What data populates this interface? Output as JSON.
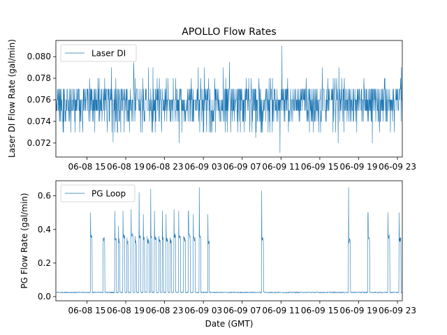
{
  "figure": {
    "title": "APOLLO Flow Rates",
    "xlabel": "Date (GMT)"
  },
  "chart_data": [
    {
      "type": "line",
      "title": "APOLLO Flow Rates",
      "xlabel": "",
      "ylabel": "Laser DI Flow Rate (gal/min)",
      "x_tick_labels": [
        "06-08 15",
        "06-08 19",
        "06-08 23",
        "06-09 03",
        "06-09 07",
        "06-09 11",
        "06-09 15",
        "06-09 19",
        "06-09 23"
      ],
      "x_ticks_hours": [
        15,
        19,
        23,
        27,
        31,
        35,
        39,
        43,
        47
      ],
      "xlim_hours": [
        11.8,
        47.5
      ],
      "y_ticks": [
        0.072,
        0.074,
        0.076,
        0.078,
        0.08
      ],
      "y_tick_labels": [
        "0.072",
        "0.074",
        "0.076",
        "0.078",
        "0.080"
      ],
      "ylim": [
        0.0707,
        0.0815
      ],
      "legend": {
        "position": "upper-left",
        "entries": [
          "Laser DI"
        ]
      },
      "grid": false,
      "color": "#1f77b4",
      "series": [
        {
          "name": "Laser DI",
          "x_hours_start": 11.8,
          "x_hours_end": 47.5,
          "baseline_values": [
            0.075,
            0.076,
            0.077,
            0.074,
            0.076,
            0.075,
            0.077,
            0.076
          ],
          "spikes": [
            {
              "x_hours": 35.1,
              "value": 0.081
            },
            {
              "x_hours": 34.9,
              "value": 0.0711
            },
            {
              "x_hours": 17.7,
              "value": 0.0721
            },
            {
              "x_hours": 24.5,
              "value": 0.072
            },
            {
              "x_hours": 32.4,
              "value": 0.0725
            },
            {
              "x_hours": 40.9,
              "value": 0.072
            },
            {
              "x_hours": 44.4,
              "value": 0.072
            },
            {
              "x_hours": 47.4,
              "value": 0.079
            },
            {
              "x_hours": 19.8,
              "value": 0.0795
            },
            {
              "x_hours": 29.7,
              "value": 0.0795
            }
          ]
        }
      ]
    },
    {
      "type": "line",
      "title": "",
      "xlabel": "Date (GMT)",
      "ylabel": "PG Flow Rate (gal/min)",
      "x_tick_labels": [
        "06-08 15",
        "06-08 19",
        "06-08 23",
        "06-09 03",
        "06-09 07",
        "06-09 11",
        "06-09 15",
        "06-09 19",
        "06-09 23"
      ],
      "x_ticks_hours": [
        15,
        19,
        23,
        27,
        31,
        35,
        39,
        43,
        47
      ],
      "xlim_hours": [
        11.8,
        47.5
      ],
      "y_ticks": [
        0.0,
        0.2,
        0.4,
        0.6
      ],
      "y_tick_labels": [
        "0.0",
        "0.2",
        "0.4",
        "0.6"
      ],
      "ylim": [
        -0.025,
        0.69
      ],
      "legend": {
        "position": "upper-left",
        "entries": [
          "PG Loop"
        ]
      },
      "grid": false,
      "color": "#1f77b4",
      "series": [
        {
          "name": "PG Loop",
          "x_hours_start": 11.8,
          "x_hours_end": 47.5,
          "baseline": 0.025,
          "pulses": [
            [
              15.35,
              15.55,
              0.36,
              0.5
            ],
            [
              16.65,
              16.85,
              0.34,
              0.35
            ],
            [
              17.85,
              18.05,
              0.35,
              0.51
            ],
            [
              18.25,
              18.4,
              0.33,
              0.42
            ],
            [
              18.7,
              18.9,
              0.36,
              0.51
            ],
            [
              19.1,
              19.25,
              0.32,
              0.35
            ],
            [
              19.55,
              19.75,
              0.37,
              0.52
            ],
            [
              19.95,
              20.1,
              0.32,
              0.36
            ],
            [
              20.35,
              20.55,
              0.36,
              0.62
            ],
            [
              20.8,
              20.95,
              0.34,
              0.49
            ],
            [
              21.2,
              21.4,
              0.33,
              0.36
            ],
            [
              21.55,
              21.7,
              0.36,
              0.64
            ],
            [
              21.95,
              22.15,
              0.35,
              0.51
            ],
            [
              22.4,
              22.55,
              0.33,
              0.36
            ],
            [
              22.75,
              22.9,
              0.35,
              0.51
            ],
            [
              23.15,
              23.35,
              0.34,
              0.49
            ],
            [
              23.55,
              23.7,
              0.33,
              0.35
            ],
            [
              23.95,
              24.15,
              0.36,
              0.52
            ],
            [
              24.45,
              24.65,
              0.35,
              0.51
            ],
            [
              24.95,
              25.15,
              0.34,
              0.36
            ],
            [
              25.45,
              25.65,
              0.36,
              0.51
            ],
            [
              25.95,
              26.15,
              0.34,
              0.49
            ],
            [
              26.55,
              26.75,
              0.35,
              0.65
            ],
            [
              27.45,
              27.6,
              0.32,
              0.49
            ],
            [
              33.0,
              33.2,
              0.34,
              0.63
            ],
            [
              41.95,
              42.15,
              0.33,
              0.65
            ],
            [
              43.95,
              44.15,
              0.35,
              0.5
            ],
            [
              46.0,
              46.2,
              0.36,
              0.5
            ],
            [
              47.15,
              47.35,
              0.34,
              0.5
            ]
          ]
        }
      ]
    }
  ]
}
